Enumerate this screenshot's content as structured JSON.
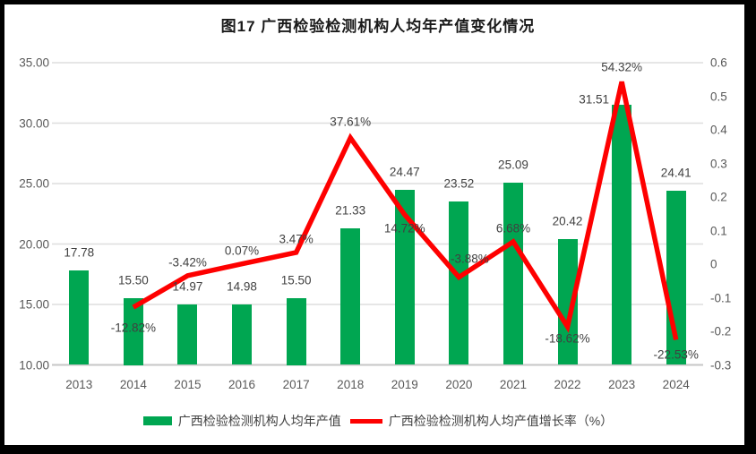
{
  "title": "图17  广西检验检测机构人均年产值变化情况",
  "legend": {
    "bar_label": "广西检验检测机构人均年产值",
    "line_label": "广西检验检测机构人均产值增长率（%）"
  },
  "colors": {
    "bar": "#00A651",
    "line": "#FE0000",
    "grid": "#DEDEDE",
    "axis_line": "#C6C6C6",
    "axis_text": "#595959",
    "label_text": "#404040",
    "title_text": "#1A1A1A",
    "frame": "#000000"
  },
  "chart_data": {
    "type": "bar",
    "subtype": "combo bar + line, dual y-axis",
    "title": "图17  广西检验检测机构人均年产值变化情况",
    "categories": [
      "2013",
      "2014",
      "2015",
      "2016",
      "2017",
      "2018",
      "2019",
      "2020",
      "2021",
      "2022",
      "2023",
      "2024"
    ],
    "series": [
      {
        "name": "广西检验检测机构人均年产值",
        "type": "bar",
        "axis": "left",
        "values": [
          17.78,
          15.5,
          14.97,
          14.98,
          15.5,
          21.33,
          24.47,
          23.52,
          25.09,
          20.42,
          31.51,
          24.41
        ],
        "labels": [
          "17.78",
          "15.50",
          "14.97",
          "14.98",
          "15.50",
          "21.33",
          "24.47",
          "23.52",
          "25.09",
          "20.42",
          "31.51",
          "24.41"
        ]
      },
      {
        "name": "广西检验检测机构人均产值增长率（%）",
        "type": "line",
        "axis": "right",
        "values": [
          null,
          -0.1282,
          -0.0342,
          0.0007,
          0.0347,
          0.3761,
          0.1472,
          -0.0388,
          0.0668,
          -0.1862,
          0.5432,
          -0.2253
        ],
        "labels": [
          null,
          "-12.82%",
          "-3.42%",
          "0.07%",
          "3.47%",
          "37.61%",
          "14.72%",
          "-3.88%",
          "6.68%",
          "-18.62%",
          "54.32%",
          "-22.53%"
        ],
        "label_side": [
          null,
          "below",
          "above",
          "above",
          "above",
          "above",
          "below",
          "above",
          "above",
          "below",
          "above",
          "below"
        ]
      }
    ],
    "left_axis": {
      "min": 10,
      "max": 35,
      "ticks": [
        "10.00",
        "15.00",
        "20.00",
        "25.00",
        "30.00",
        "35.00"
      ]
    },
    "right_axis": {
      "min": -0.3,
      "max": 0.6,
      "ticks": [
        "-0.3",
        "-0.2",
        "-0.1",
        "0",
        "0.1",
        "0.2",
        "0.3",
        "0.4",
        "0.5",
        "0.6"
      ]
    },
    "grid": true,
    "legend_position": "bottom",
    "xlabel": "",
    "ylabel": ""
  }
}
